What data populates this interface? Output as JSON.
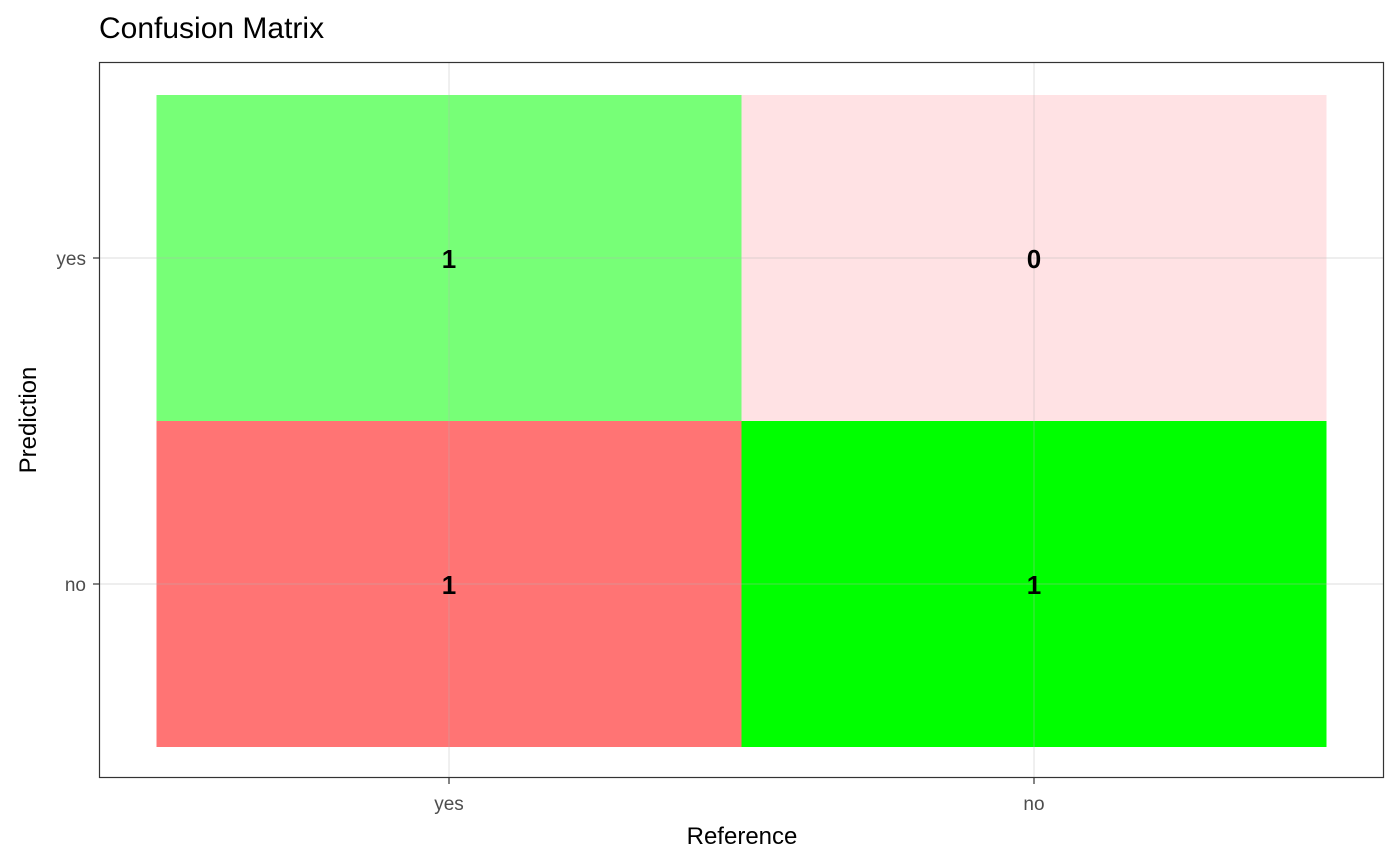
{
  "chart_data": {
    "type": "heatmap",
    "title": "Confusion Matrix",
    "xlabel": "Reference",
    "ylabel": "Prediction",
    "x_categories": [
      "yes",
      "no"
    ],
    "y_categories": [
      "yes",
      "no"
    ],
    "grid": true,
    "cells": [
      {
        "reference": "yes",
        "prediction": "yes",
        "value": 1,
        "color": "#77ff77"
      },
      {
        "reference": "no",
        "prediction": "yes",
        "value": 0,
        "color": "#ffe2e4"
      },
      {
        "reference": "yes",
        "prediction": "no",
        "value": 1,
        "color": "#ff7474"
      },
      {
        "reference": "no",
        "prediction": "no",
        "value": 1,
        "color": "#00ff00"
      }
    ]
  }
}
